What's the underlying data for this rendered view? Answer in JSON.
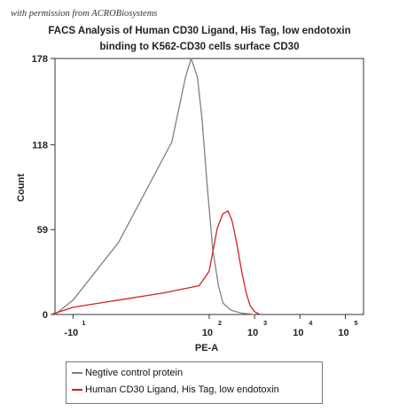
{
  "watermark": "with permission from ACROBiosystems",
  "chart_data": {
    "type": "line",
    "title_line1": "FACS Analysis of Human CD30 Ligand, His Tag, low endotoxin",
    "title_line2": "binding to K562-CD30 cells surface CD30",
    "xlabel": "PE-A",
    "ylabel": "Count",
    "x_scale": "biexponential",
    "x_ticks": [
      {
        "base": "-10",
        "exp": "1",
        "value": -10
      },
      {
        "base": "10",
        "exp": "2",
        "value": 100
      },
      {
        "base": "10",
        "exp": "3",
        "value": 1000
      },
      {
        "base": "10",
        "exp": "4",
        "value": 10000
      },
      {
        "base": "10",
        "exp": "5",
        "value": 100000
      }
    ],
    "y_ticks": [
      "0",
      "59",
      "118",
      "178"
    ],
    "ylim": [
      0,
      178
    ],
    "grid": false,
    "legend_position": "bottom",
    "series": [
      {
        "name": "Negtive control protein",
        "color": "#808080",
        "points": [
          [
            -25,
            0
          ],
          [
            -10,
            10
          ],
          [
            0,
            50
          ],
          [
            15,
            120
          ],
          [
            30,
            165
          ],
          [
            40,
            178
          ],
          [
            55,
            165
          ],
          [
            70,
            135
          ],
          [
            90,
            90
          ],
          [
            120,
            45
          ],
          [
            160,
            20
          ],
          [
            200,
            8
          ],
          [
            300,
            3
          ],
          [
            500,
            1
          ],
          [
            1000,
            0
          ]
        ]
      },
      {
        "name": "Human CD30 Ligand, His Tag, low endotoxin",
        "color": "#d42020",
        "points": [
          [
            -30,
            0
          ],
          [
            -10,
            5
          ],
          [
            10,
            15
          ],
          [
            60,
            20
          ],
          [
            100,
            30
          ],
          [
            150,
            60
          ],
          [
            200,
            70
          ],
          [
            260,
            72
          ],
          [
            320,
            65
          ],
          [
            400,
            50
          ],
          [
            520,
            30
          ],
          [
            650,
            15
          ],
          [
            800,
            6
          ],
          [
            1000,
            2
          ],
          [
            1300,
            0
          ]
        ]
      }
    ]
  }
}
